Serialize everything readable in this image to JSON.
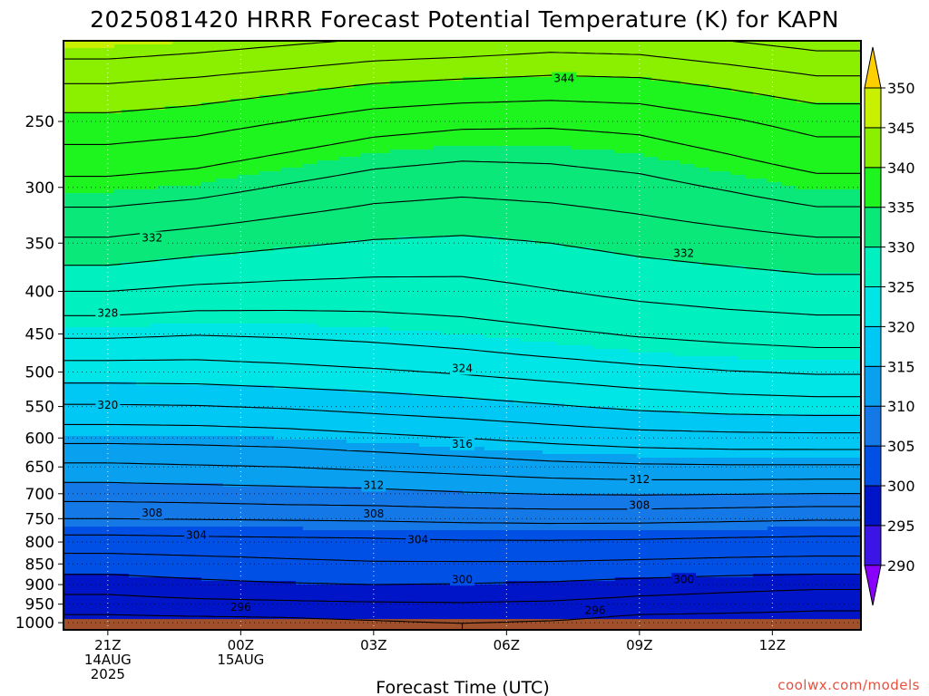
{
  "title": "2025081420 HRRR Forecast Potential Temperature (K) for KAPN",
  "credit": "coolwx.com/models",
  "credit_color": "#e8503c",
  "chart_data": {
    "type": "heatmap",
    "title": "2025081420 HRRR Forecast Potential Temperature (K) for KAPN",
    "xlabel": "Forecast Time (UTC)",
    "ylabel": "",
    "x_hours": [
      0,
      3,
      6,
      9,
      12,
      15
    ],
    "x_ticks": [
      {
        "hour": 0,
        "lines": [
          "21Z",
          "14AUG",
          "2025"
        ]
      },
      {
        "hour": 3,
        "lines": [
          "00Z",
          "15AUG"
        ]
      },
      {
        "hour": 6,
        "lines": [
          "03Z"
        ]
      },
      {
        "hour": 9,
        "lines": [
          "06Z"
        ]
      },
      {
        "hour": 12,
        "lines": [
          "09Z"
        ]
      },
      {
        "hour": 15,
        "lines": [
          "12Z"
        ]
      }
    ],
    "xlim": [
      -1,
      17
    ],
    "y_ticks": [
      250,
      300,
      350,
      400,
      450,
      500,
      550,
      600,
      650,
      700,
      750,
      800,
      850,
      900,
      950,
      1000
    ],
    "ylim_hPa": [
      200,
      1020
    ],
    "y_scale": "log-pressure",
    "ground_hPa": 990,
    "grid": true,
    "contour_interval_K": 2,
    "contour_labels": [
      {
        "value": "344",
        "hour": 10.3,
        "p": 222
      },
      {
        "value": "332",
        "hour": 1.0,
        "p": 345
      },
      {
        "value": "332",
        "hour": 13.0,
        "p": 360
      },
      {
        "value": "328",
        "hour": 0.0,
        "p": 425
      },
      {
        "value": "324",
        "hour": 8.0,
        "p": 495
      },
      {
        "value": "320",
        "hour": 0.0,
        "p": 548
      },
      {
        "value": "316",
        "hour": 8.0,
        "p": 610
      },
      {
        "value": "312",
        "hour": 6.0,
        "p": 684
      },
      {
        "value": "312",
        "hour": 12.0,
        "p": 673
      },
      {
        "value": "308",
        "hour": 1.0,
        "p": 738
      },
      {
        "value": "308",
        "hour": 6.0,
        "p": 740
      },
      {
        "value": "308",
        "hour": 12.0,
        "p": 723
      },
      {
        "value": "304",
        "hour": 2.0,
        "p": 785
      },
      {
        "value": "304",
        "hour": 7.0,
        "p": 795
      },
      {
        "value": "300",
        "hour": 8.0,
        "p": 887
      },
      {
        "value": "300",
        "hour": 13.0,
        "p": 887
      },
      {
        "value": "296",
        "hour": 3.0,
        "p": 958
      },
      {
        "value": "296",
        "hour": 11.0,
        "p": 966
      }
    ],
    "colorbar": {
      "ticks": [
        290,
        295,
        300,
        305,
        310,
        315,
        320,
        325,
        330,
        335,
        340,
        345,
        350
      ],
      "colors": [
        "#8a00ff",
        "#3c14e6",
        "#0014c8",
        "#0050e6",
        "#1478e6",
        "#0aa0f0",
        "#00c8f5",
        "#00e6e6",
        "#00f0c0",
        "#0ae87a",
        "#1ef51e",
        "#8af000",
        "#c8f000",
        "#f0f000",
        "#ffe000"
      ],
      "under_color": "#8a00ff",
      "over_color": "#ffd000"
    },
    "field": {
      "hours": [
        0,
        2,
        4,
        6,
        8,
        10,
        12,
        14,
        16
      ],
      "levels_hPa": [
        1000,
        975,
        950,
        925,
        900,
        875,
        850,
        825,
        800,
        775,
        750,
        725,
        700,
        675,
        650,
        625,
        600,
        575,
        550,
        525,
        500,
        475,
        450,
        425,
        400,
        375,
        350,
        325,
        300,
        275,
        250,
        225,
        200
      ],
      "theta_K": [
        [
          295.5,
          295.5,
          295.6,
          295.8,
          296.0,
          295.8,
          295.5,
          295.4,
          295.3
        ],
        [
          296.0,
          296.2,
          296.3,
          296.5,
          296.8,
          296.6,
          296.0,
          295.9,
          295.8
        ],
        [
          297.0,
          297.3,
          297.5,
          297.7,
          297.8,
          297.6,
          297.0,
          296.8,
          296.5
        ],
        [
          298.0,
          298.5,
          298.8,
          299.0,
          299.0,
          298.8,
          298.2,
          297.8,
          297.4
        ],
        [
          299.0,
          299.5,
          299.8,
          300.0,
          299.9,
          299.7,
          299.2,
          298.8,
          298.6
        ],
        [
          300.0,
          300.4,
          300.8,
          301.0,
          300.9,
          300.8,
          300.5,
          300.2,
          300.0
        ],
        [
          301.0,
          301.3,
          301.6,
          301.8,
          301.8,
          301.8,
          301.6,
          301.4,
          301.2
        ],
        [
          302.0,
          302.2,
          302.4,
          302.6,
          302.7,
          302.7,
          302.6,
          302.4,
          302.3
        ],
        [
          303.2,
          303.4,
          303.5,
          303.6,
          303.8,
          303.8,
          303.7,
          303.5,
          303.4
        ],
        [
          304.5,
          304.6,
          304.7,
          304.8,
          305.0,
          305.1,
          305.0,
          304.8,
          304.6
        ],
        [
          306.0,
          306.1,
          306.2,
          306.3,
          306.5,
          306.6,
          306.6,
          306.4,
          306.2
        ],
        [
          307.5,
          307.6,
          307.8,
          307.9,
          308.2,
          308.4,
          308.4,
          308.2,
          308.0
        ],
        [
          308.8,
          309.0,
          309.2,
          309.4,
          309.8,
          310.1,
          310.2,
          310.1,
          310.0
        ],
        [
          310.2,
          310.4,
          310.6,
          310.9,
          311.3,
          311.7,
          311.9,
          311.9,
          311.8
        ],
        [
          311.6,
          311.8,
          312.0,
          312.4,
          312.8,
          313.3,
          313.6,
          313.7,
          313.7
        ],
        [
          313.0,
          313.2,
          313.4,
          313.9,
          314.4,
          315.0,
          315.4,
          315.6,
          315.6
        ],
        [
          314.6,
          314.7,
          315.0,
          315.5,
          316.0,
          316.6,
          317.1,
          317.3,
          317.4
        ],
        [
          316.2,
          316.3,
          316.6,
          317.1,
          317.6,
          318.2,
          318.8,
          319.1,
          319.2
        ],
        [
          317.8,
          317.9,
          318.2,
          318.7,
          319.2,
          319.8,
          320.4,
          320.8,
          321.0
        ],
        [
          319.4,
          319.5,
          319.8,
          320.2,
          320.7,
          321.3,
          321.9,
          322.4,
          322.7
        ],
        [
          321.0,
          321.0,
          321.3,
          321.7,
          322.2,
          322.8,
          323.4,
          323.9,
          324.2
        ],
        [
          322.6,
          322.5,
          322.8,
          323.2,
          323.7,
          324.3,
          324.9,
          325.3,
          325.6
        ],
        [
          324.4,
          324.1,
          324.3,
          324.6,
          325.0,
          325.6,
          326.2,
          326.6,
          326.9
        ],
        [
          326.2,
          325.8,
          325.8,
          325.9,
          326.2,
          326.8,
          327.4,
          327.8,
          328.1
        ],
        [
          328.0,
          327.5,
          327.3,
          327.2,
          327.3,
          327.9,
          328.5,
          328.9,
          329.2
        ],
        [
          329.8,
          329.2,
          328.8,
          328.5,
          328.4,
          328.9,
          329.5,
          329.9,
          330.3
        ],
        [
          331.6,
          330.9,
          330.3,
          329.8,
          329.6,
          330.0,
          330.6,
          331.1,
          331.6
        ],
        [
          333.4,
          332.8,
          332.0,
          331.3,
          331.0,
          331.3,
          331.9,
          332.6,
          333.4
        ],
        [
          335.3,
          334.8,
          333.8,
          332.9,
          332.5,
          332.8,
          333.3,
          334.2,
          335.2
        ],
        [
          337.3,
          336.8,
          335.8,
          334.8,
          334.3,
          334.4,
          334.9,
          335.9,
          337.0
        ],
        [
          339.4,
          338.9,
          338.0,
          337.0,
          336.5,
          336.4,
          336.7,
          337.7,
          338.8
        ],
        [
          342.0,
          341.5,
          340.8,
          340.0,
          339.6,
          339.3,
          339.5,
          340.4,
          341.4
        ],
        [
          345.5,
          345.0,
          344.4,
          343.8,
          343.5,
          343.0,
          343.2,
          344.0,
          344.8
        ]
      ]
    }
  }
}
